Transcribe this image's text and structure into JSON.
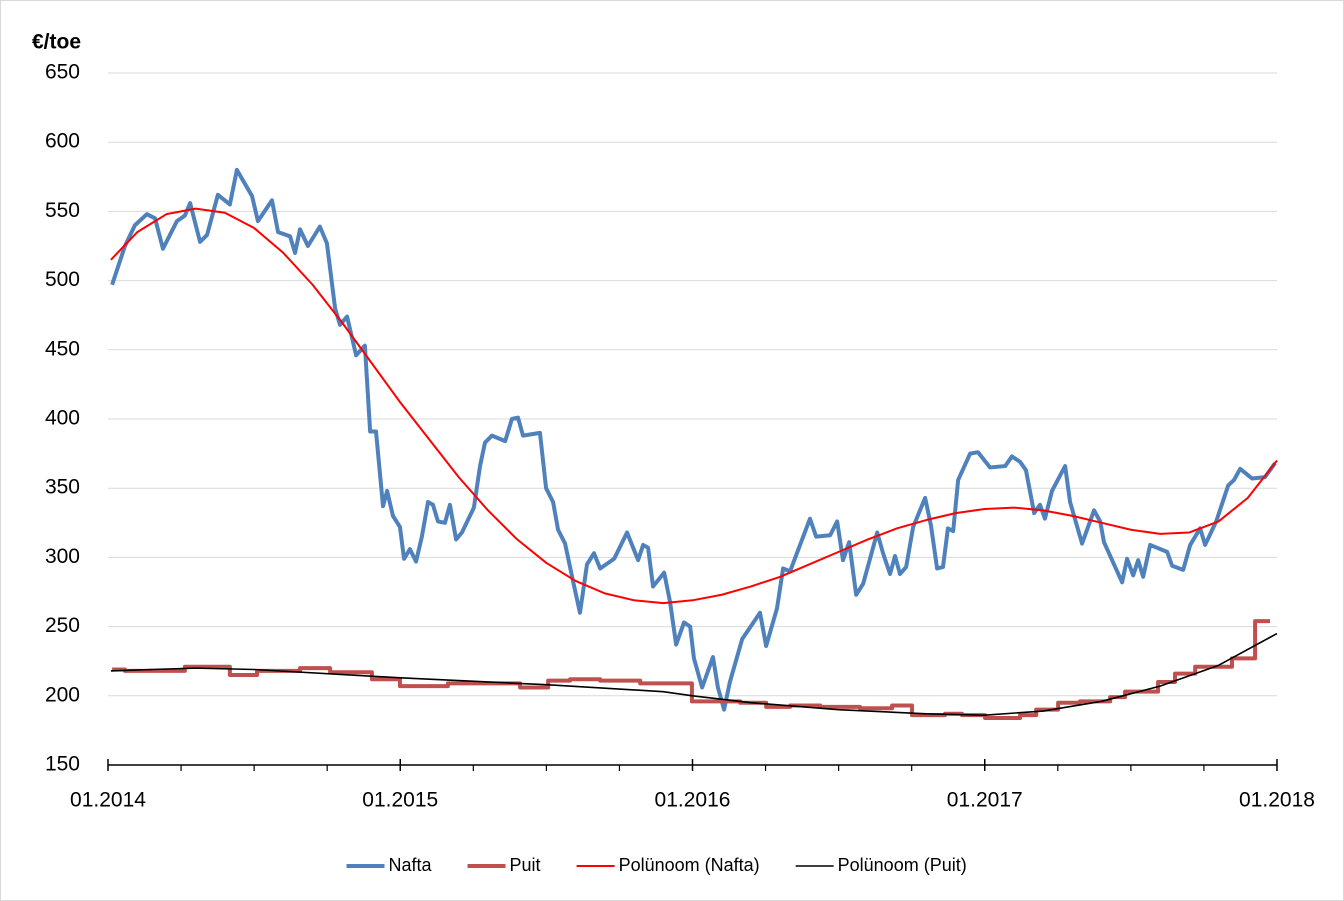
{
  "chart_data": {
    "type": "line",
    "ylabel": "€/toe",
    "xlim": [
      2014,
      2018
    ],
    "xticks": [
      {
        "value": 2014,
        "label": "01.2014"
      },
      {
        "value": 2015,
        "label": "01.2015"
      },
      {
        "value": 2016,
        "label": "01.2016"
      },
      {
        "value": 2017,
        "label": "01.2017"
      },
      {
        "value": 2018,
        "label": "01.2018"
      }
    ],
    "xminor_ticks": [
      2014.25,
      2014.5,
      2014.75,
      2015.25,
      2015.5,
      2015.75,
      2016.25,
      2016.5,
      2016.75,
      2017.25,
      2017.5,
      2017.75
    ],
    "ylim": [
      150,
      650
    ],
    "yticks": [
      150,
      200,
      250,
      300,
      350,
      400,
      450,
      500,
      550,
      600,
      650
    ],
    "grid": true,
    "legend": "bottom",
    "series": [
      {
        "name": "Nafta",
        "color": "#4f81bd",
        "x": [
          2014.014,
          2014.058,
          2014.092,
          2014.133,
          2014.161,
          2014.188,
          2014.236,
          2014.263,
          2014.281,
          2014.315,
          2014.339,
          2014.376,
          2014.417,
          2014.441,
          2014.493,
          2014.513,
          2014.561,
          2014.582,
          2014.623,
          2014.64,
          2014.657,
          2014.684,
          2014.725,
          2014.749,
          2014.777,
          2014.794,
          2014.818,
          2014.849,
          2014.879,
          2014.897,
          2014.917,
          2014.941,
          2014.955,
          2014.975,
          2014.999,
          2015.013,
          2015.033,
          2015.054,
          2015.074,
          2015.095,
          2015.112,
          2015.129,
          2015.153,
          2015.17,
          2015.191,
          2015.211,
          2015.252,
          2015.273,
          2015.29,
          2015.314,
          2015.359,
          2015.382,
          2015.403,
          2015.42,
          2015.478,
          2015.499,
          2015.523,
          2015.54,
          2015.564,
          2015.591,
          2015.615,
          2015.639,
          2015.663,
          2015.684,
          2015.732,
          2015.776,
          2015.814,
          2015.831,
          2015.848,
          2015.865,
          2015.903,
          2015.923,
          2015.944,
          2015.971,
          2015.992,
          2016.005,
          2016.033,
          2016.07,
          2016.087,
          2016.108,
          2016.128,
          2016.17,
          2016.231,
          2016.252,
          2016.289,
          2016.31,
          2016.334,
          2016.402,
          2016.423,
          2016.471,
          2016.495,
          2016.515,
          2016.536,
          2016.56,
          2016.584,
          2016.632,
          2016.652,
          2016.676,
          2016.693,
          2016.71,
          2016.731,
          2016.755,
          2016.796,
          2016.816,
          2016.837,
          2016.857,
          2016.874,
          2016.892,
          2016.909,
          2016.95,
          2016.977,
          2017.018,
          2017.07,
          2017.093,
          2017.121,
          2017.141,
          2017.169,
          2017.189,
          2017.206,
          2017.23,
          2017.275,
          2017.292,
          2017.333,
          2017.374,
          2017.395,
          2017.408,
          2017.47,
          2017.487,
          2017.508,
          2017.525,
          2017.542,
          2017.566,
          2017.624,
          2017.641,
          2017.679,
          2017.703,
          2017.737,
          2017.754,
          2017.792,
          2017.833,
          2017.853,
          2017.874,
          2017.915,
          2017.959,
          2017.993
        ],
        "values": [
          497,
          525,
          540,
          548,
          545,
          523,
          543,
          547,
          556,
          528,
          533,
          562,
          555,
          580,
          561,
          543,
          558,
          535,
          532,
          520,
          537,
          525,
          539,
          527,
          480,
          468,
          474,
          446,
          453,
          391,
          391,
          337,
          348,
          330,
          322,
          299,
          306,
          297,
          315,
          340,
          338,
          326,
          325,
          338,
          313,
          318,
          336,
          366,
          383,
          388,
          384,
          400,
          401,
          388,
          390,
          350,
          340,
          320,
          310,
          283,
          260,
          295,
          303,
          292,
          299,
          318,
          298,
          309,
          307,
          279,
          289,
          268,
          237,
          253,
          250,
          227,
          206,
          228,
          206,
          190,
          210,
          241,
          260,
          236,
          263,
          292,
          290,
          328,
          315,
          316,
          326,
          298,
          311,
          273,
          281,
          318,
          303,
          288,
          301,
          288,
          293,
          322,
          343,
          323,
          292,
          293,
          321,
          319,
          356,
          375,
          376,
          365,
          366,
          373,
          369,
          363,
          332,
          338,
          328,
          348,
          366,
          340,
          310,
          334,
          326,
          311,
          282,
          299,
          287,
          298,
          286,
          309,
          304,
          294,
          291,
          309,
          321,
          309,
          326,
          352,
          356,
          364,
          357,
          358,
          368
        ]
      },
      {
        "name": "Puit",
        "color": "#c0504d",
        "step": "post",
        "x": [
          2014.014,
          2014.058,
          2014.263,
          2014.417,
          2014.51,
          2014.657,
          2014.76,
          2014.903,
          2014.999,
          2015.163,
          2015.41,
          2015.506,
          2015.581,
          2015.684,
          2015.821,
          2015.998,
          2016.163,
          2016.252,
          2016.334,
          2016.437,
          2016.573,
          2016.683,
          2016.751,
          2016.864,
          2016.922,
          2017.001,
          2017.121,
          2017.176,
          2017.251,
          2017.326,
          2017.429,
          2017.48,
          2017.593,
          2017.651,
          2017.72,
          2017.846,
          2017.925,
          2017.976
        ],
        "values": [
          219,
          218,
          221,
          215,
          218,
          220,
          217,
          212,
          207,
          209,
          206,
          211,
          212,
          211,
          209,
          196,
          195,
          192,
          193,
          192,
          191,
          193,
          186,
          187,
          186,
          184,
          186,
          190,
          195,
          196,
          199,
          203,
          210,
          216,
          221,
          227,
          254,
          254
        ]
      },
      {
        "name": "Polünoom (Nafta)",
        "color": "#ff0000",
        "x": [
          2014.01,
          2014.1,
          2014.2,
          2014.3,
          2014.4,
          2014.5,
          2014.6,
          2014.7,
          2014.8,
          2014.9,
          2015.0,
          2015.1,
          2015.2,
          2015.3,
          2015.4,
          2015.5,
          2015.6,
          2015.7,
          2015.8,
          2015.9,
          2016.0,
          2016.1,
          2016.2,
          2016.3,
          2016.4,
          2016.5,
          2016.6,
          2016.7,
          2016.8,
          2016.9,
          2017.0,
          2017.1,
          2017.2,
          2017.3,
          2017.4,
          2017.5,
          2017.6,
          2017.7,
          2017.8,
          2017.9,
          2018.0
        ],
        "values": [
          515,
          535,
          548,
          552,
          549,
          538,
          520,
          497,
          470,
          441,
          412,
          385,
          358,
          334,
          313,
          296,
          283,
          274,
          269,
          267,
          269,
          273,
          279,
          286,
          295,
          304,
          313,
          321,
          327,
          332,
          335,
          336,
          334,
          330,
          325,
          320,
          317,
          318,
          326,
          343,
          370
        ]
      },
      {
        "name": "Polünoom (Puit)",
        "color": "#000000",
        "x": [
          2014.01,
          2014.3,
          2014.5,
          2015.0,
          2015.5,
          2015.9,
          2016.0,
          2016.2,
          2016.5,
          2016.8,
          2017.0,
          2017.2,
          2017.4,
          2017.6,
          2017.8,
          2018.0
        ],
        "values": [
          218,
          220,
          219,
          213,
          208,
          203,
          200,
          195,
          190,
          187,
          186,
          189,
          196,
          207,
          222,
          245
        ]
      }
    ]
  }
}
